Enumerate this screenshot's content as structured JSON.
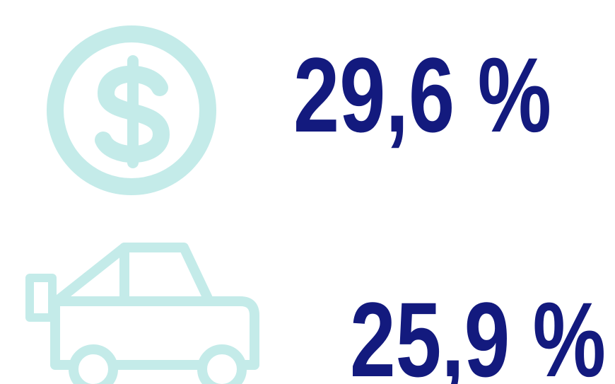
{
  "items": [
    {
      "value": "29,6 %"
    },
    {
      "value": "25,9 %"
    }
  ]
}
